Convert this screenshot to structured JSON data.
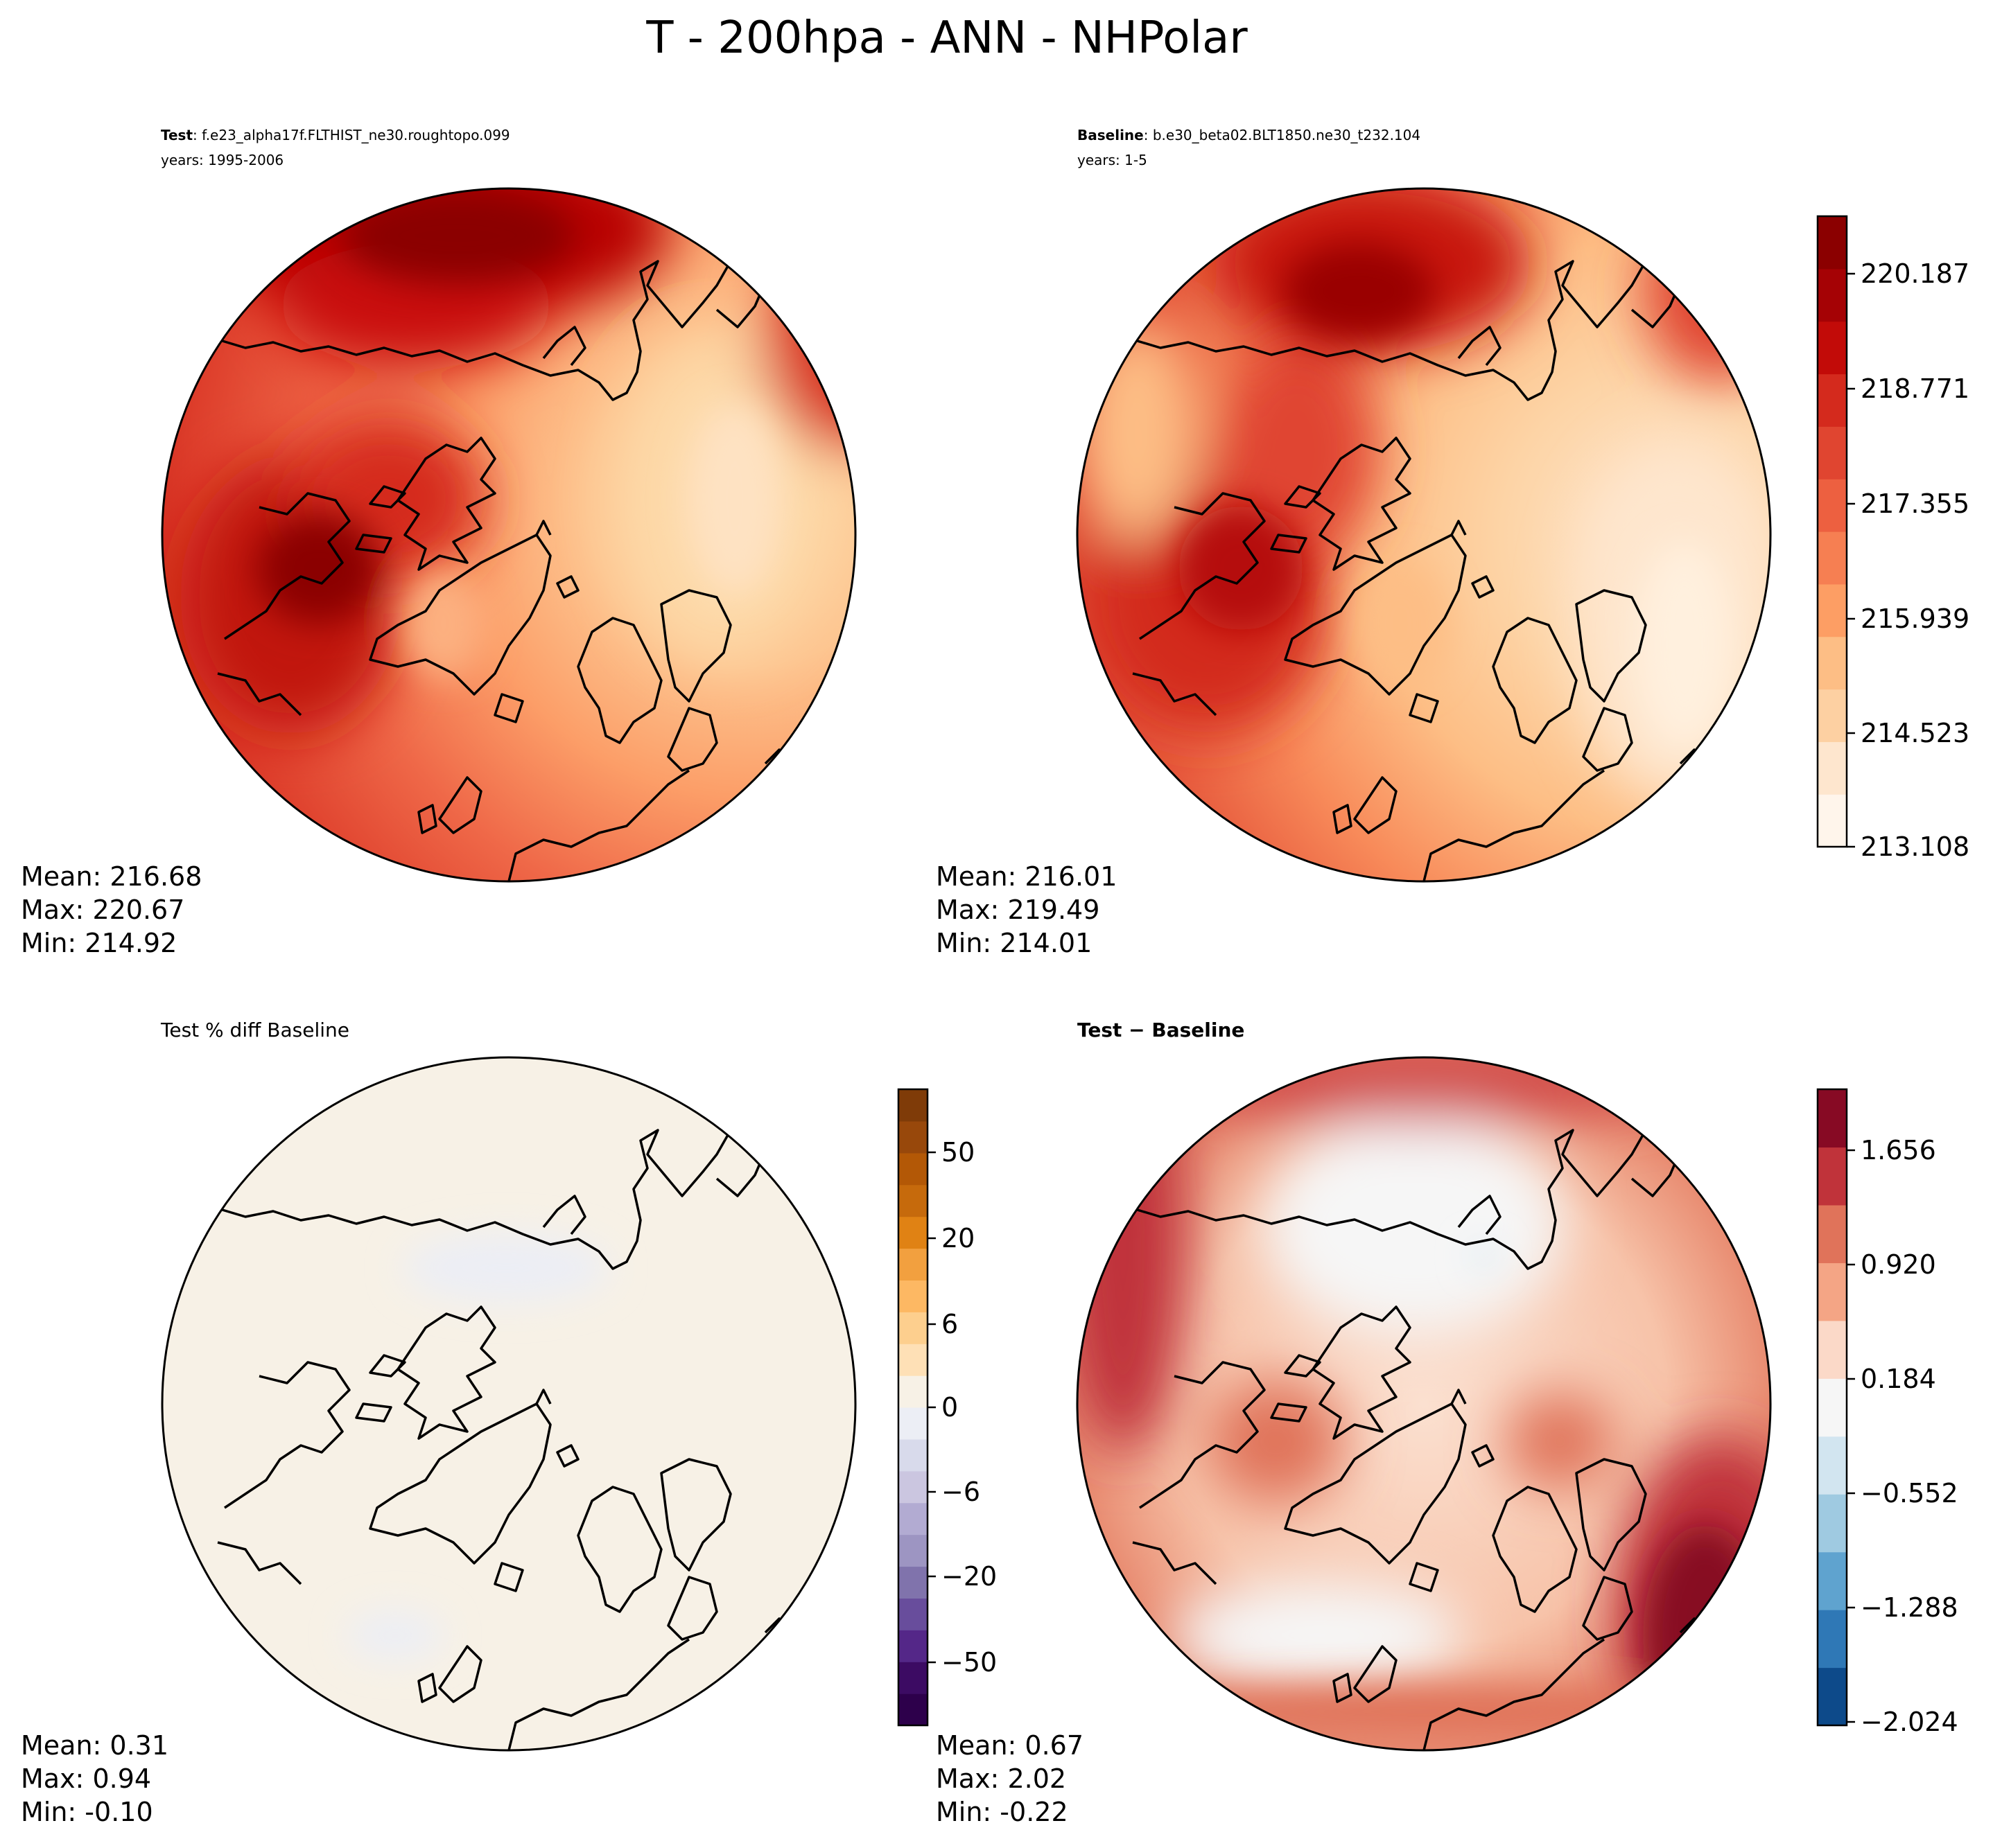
{
  "figure_title": "T - 200hpa - ANN - NHPolar",
  "chart_data": [
    {
      "type": "heatmap",
      "projection": "North Polar Stereographic",
      "panel": "test",
      "title_bold": "Test",
      "title_rest": ": f.e23_alpha17f.FLTHIST_ne30.roughtopo.099",
      "years": "years: 1995-2006",
      "stats": {
        "mean": "Mean: 216.68",
        "max": "Max: 220.67",
        "min": "Min: 214.92"
      },
      "colormap": "OrRd-like"
    },
    {
      "type": "heatmap",
      "projection": "North Polar Stereographic",
      "panel": "baseline",
      "title_bold": "Baseline",
      "title_rest": ": b.e30_beta02.BLT1850.ne30_t232.104",
      "years": "years: 1-5",
      "stats": {
        "mean": "Mean: 216.01",
        "max": "Max: 219.49",
        "min": "Min: 214.01"
      },
      "colorbar": {
        "range": [
          213.108,
          220.895
        ],
        "tick_labels": [
          "220.187",
          "218.771",
          "217.355",
          "215.939",
          "214.523",
          "213.108"
        ],
        "colors": [
          "#fff5eb",
          "#fee6ce",
          "#fdd0a2",
          "#fdbe85",
          "#fd9e64",
          "#f67f52",
          "#ed6040",
          "#e04530",
          "#d42a1d",
          "#c20b08",
          "#a50205",
          "#8b0000"
        ]
      }
    },
    {
      "type": "heatmap",
      "projection": "North Polar Stereographic",
      "panel": "percent_diff",
      "title": "Test % diff Baseline",
      "stats": {
        "mean": "Mean:  0.31",
        "max": "Max:  0.94",
        "min": "Min: -0.10"
      },
      "colorbar": {
        "tick_labels": [
          "50",
          "20",
          "6",
          "0",
          "−6",
          "−20",
          "−50"
        ],
        "colors": [
          "#2d004b",
          "#3c0b63",
          "#542788",
          "#684d9c",
          "#8073ac",
          "#9d95c2",
          "#b2abd2",
          "#cbc6e0",
          "#d8daeb",
          "#eceef5",
          "#f7f1e6",
          "#fee0b6",
          "#fdcf8e",
          "#fdb863",
          "#f2a03f",
          "#e08214",
          "#c66a0c",
          "#b35806",
          "#98480b",
          "#7f3b08"
        ]
      }
    },
    {
      "type": "heatmap",
      "projection": "North Polar Stereographic",
      "panel": "difference",
      "title_bold": "Test − Baseline",
      "stats": {
        "mean": "Mean:  0.67",
        "max": "Max:  2.02",
        "min": "Min: -0.22"
      },
      "colorbar": {
        "range": [
          -2.024,
          2.024
        ],
        "tick_labels": [
          "1.656",
          "0.920",
          "0.184",
          "−0.552",
          "−1.288",
          "−2.024"
        ],
        "colors": [
          "#0d4a8a",
          "#2f78b6",
          "#5fa3cf",
          "#9fcae1",
          "#d2e5f0",
          "#f6f6f6",
          "#fbd9c8",
          "#f4a585",
          "#e0735a",
          "#c0333a",
          "#870a24"
        ]
      }
    }
  ]
}
